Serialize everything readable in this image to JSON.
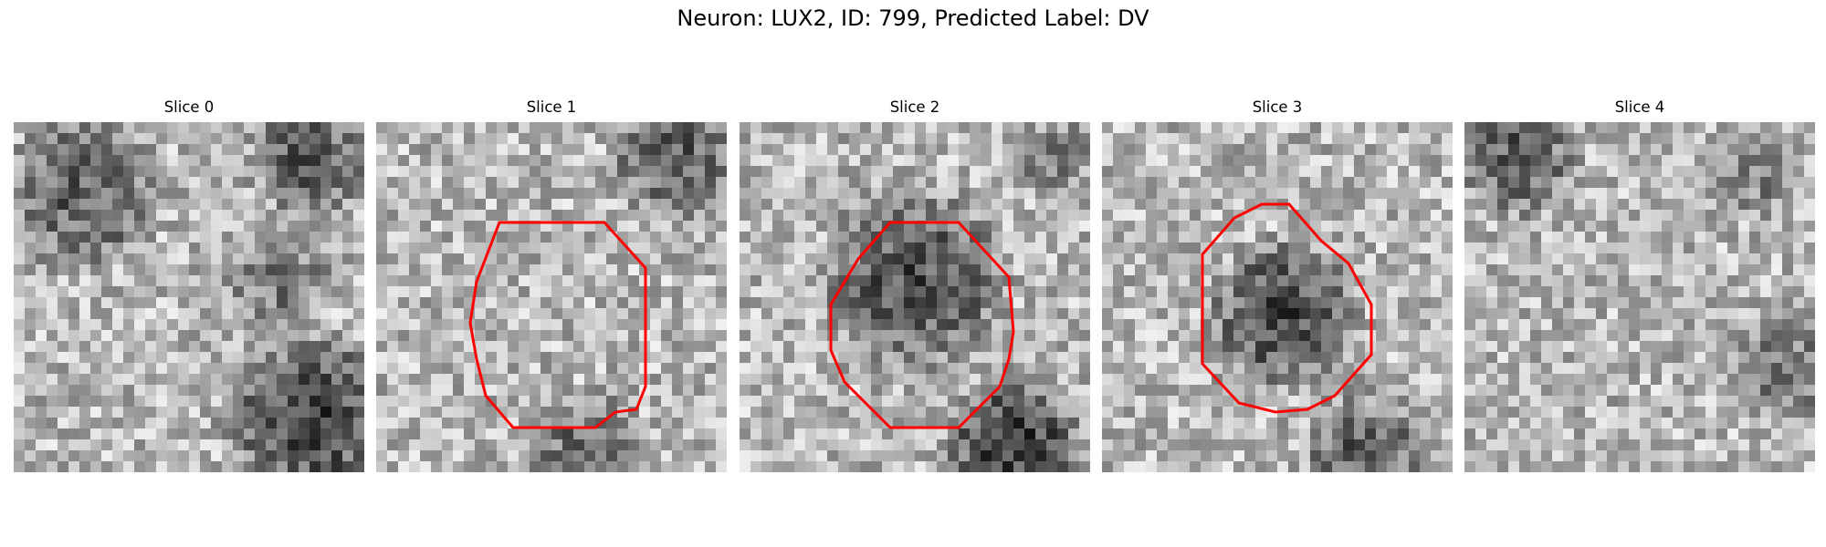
{
  "figure": {
    "title": "Neuron: LUX2, ID: 799, Predicted Label: DV"
  },
  "panels": [
    {
      "title": "Slice 0",
      "has_contour": false,
      "seed": 11
    },
    {
      "title": "Slice 1",
      "has_contour": true,
      "seed": 23
    },
    {
      "title": "Slice 2",
      "has_contour": true,
      "seed": 37
    },
    {
      "title": "Slice 3",
      "has_contour": true,
      "seed": 41
    },
    {
      "title": "Slice 4",
      "has_contour": false,
      "seed": 53
    }
  ],
  "colors": {
    "contour": "#ff0000",
    "background": "#ffffff"
  }
}
